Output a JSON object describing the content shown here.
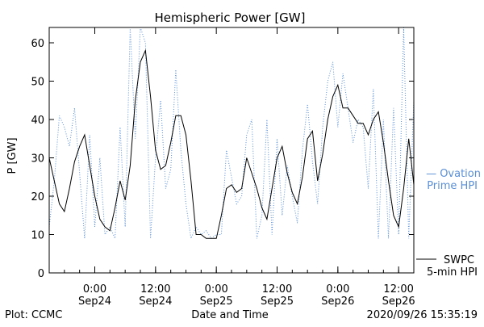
{
  "chart_data": {
    "type": "line",
    "title": "Hemispheric Power [GW]",
    "xlabel": "Date and Time",
    "ylabel": "P [GW]",
    "xlim": [
      "2020-09-23 15:00",
      "2020-09-26 15:00"
    ],
    "ylim": [
      0,
      64
    ],
    "yticks": [
      0,
      10,
      20,
      30,
      40,
      50,
      60
    ],
    "xticks": [
      {
        "t": "2020-09-24 00:00",
        "time": "0:00",
        "date": "Sep24"
      },
      {
        "t": "2020-09-24 12:00",
        "time": "12:00",
        "date": "Sep24"
      },
      {
        "t": "2020-09-25 00:00",
        "time": "0:00",
        "date": "Sep25"
      },
      {
        "t": "2020-09-25 12:00",
        "time": "12:00",
        "date": "Sep25"
      },
      {
        "t": "2020-09-26 00:00",
        "time": "0:00",
        "date": "Sep26"
      },
      {
        "t": "2020-09-26 12:00",
        "time": "12:00",
        "date": "Sep26"
      }
    ],
    "series": [
      {
        "name": "SWPC 5-min HPI",
        "legend": [
          "SWPC",
          "5-min HPI"
        ],
        "color": "#000000",
        "style": "solid",
        "x": [
          "2020-09-23 15:00",
          "2020-09-23 16:00",
          "2020-09-23 17:00",
          "2020-09-23 18:00",
          "2020-09-23 19:00",
          "2020-09-23 20:00",
          "2020-09-23 21:00",
          "2020-09-23 22:00",
          "2020-09-23 23:00",
          "2020-09-24 00:00",
          "2020-09-24 01:00",
          "2020-09-24 02:00",
          "2020-09-24 03:00",
          "2020-09-24 04:00",
          "2020-09-24 05:00",
          "2020-09-24 06:00",
          "2020-09-24 07:00",
          "2020-09-24 08:00",
          "2020-09-24 09:00",
          "2020-09-24 10:00",
          "2020-09-24 11:00",
          "2020-09-24 12:00",
          "2020-09-24 13:00",
          "2020-09-24 14:00",
          "2020-09-24 15:00",
          "2020-09-24 16:00",
          "2020-09-24 17:00",
          "2020-09-24 18:00",
          "2020-09-24 19:00",
          "2020-09-24 20:00",
          "2020-09-24 21:00",
          "2020-09-24 22:00",
          "2020-09-24 23:00",
          "2020-09-25 00:00",
          "2020-09-25 01:00",
          "2020-09-25 02:00",
          "2020-09-25 03:00",
          "2020-09-25 04:00",
          "2020-09-25 05:00",
          "2020-09-25 06:00",
          "2020-09-25 07:00",
          "2020-09-25 08:00",
          "2020-09-25 09:00",
          "2020-09-25 10:00",
          "2020-09-25 11:00",
          "2020-09-25 12:00",
          "2020-09-25 13:00",
          "2020-09-25 14:00",
          "2020-09-25 15:00",
          "2020-09-25 16:00",
          "2020-09-25 17:00",
          "2020-09-25 18:00",
          "2020-09-25 19:00",
          "2020-09-25 20:00",
          "2020-09-25 21:00",
          "2020-09-25 22:00",
          "2020-09-25 23:00",
          "2020-09-26 00:00",
          "2020-09-26 01:00",
          "2020-09-26 02:00",
          "2020-09-26 03:00",
          "2020-09-26 04:00",
          "2020-09-26 05:00",
          "2020-09-26 06:00",
          "2020-09-26 07:00",
          "2020-09-26 08:00",
          "2020-09-26 09:00",
          "2020-09-26 10:00",
          "2020-09-26 11:00",
          "2020-09-26 12:00",
          "2020-09-26 13:00",
          "2020-09-26 14:00",
          "2020-09-26 15:00"
        ],
        "y": [
          30,
          24,
          18,
          16,
          22,
          29,
          33,
          36,
          28,
          20,
          14,
          12,
          11,
          17,
          24,
          19,
          28,
          45,
          55,
          58,
          46,
          32,
          27,
          28,
          34,
          41,
          41,
          36,
          24,
          10,
          10,
          9,
          9,
          9,
          15,
          22,
          23,
          21,
          22,
          30,
          26,
          22,
          17,
          14,
          22,
          30,
          33,
          26,
          21,
          18,
          25,
          35,
          37,
          24,
          31,
          40,
          46,
          49,
          43,
          43,
          41,
          39,
          39,
          36,
          40,
          42,
          34,
          24,
          15,
          12,
          22,
          35,
          23
        ]
      },
      {
        "name": "Ovation Prime HPI",
        "legend": [
          "— Ovation",
          "Prime HPI"
        ],
        "color": "#5a8fd6",
        "style": "dotted",
        "x": [
          "2020-09-23 15:00",
          "2020-09-23 16:00",
          "2020-09-23 17:00",
          "2020-09-23 18:00",
          "2020-09-23 19:00",
          "2020-09-23 20:00",
          "2020-09-23 21:00",
          "2020-09-23 22:00",
          "2020-09-23 23:00",
          "2020-09-24 00:00",
          "2020-09-24 01:00",
          "2020-09-24 02:00",
          "2020-09-24 03:00",
          "2020-09-24 04:00",
          "2020-09-24 05:00",
          "2020-09-24 06:00",
          "2020-09-24 07:00",
          "2020-09-24 08:00",
          "2020-09-24 09:00",
          "2020-09-24 10:00",
          "2020-09-24 11:00",
          "2020-09-24 12:00",
          "2020-09-24 13:00",
          "2020-09-24 14:00",
          "2020-09-24 15:00",
          "2020-09-24 16:00",
          "2020-09-24 17:00",
          "2020-09-24 18:00",
          "2020-09-24 19:00",
          "2020-09-24 20:00",
          "2020-09-24 21:00",
          "2020-09-24 22:00",
          "2020-09-24 23:00",
          "2020-09-25 00:00",
          "2020-09-25 01:00",
          "2020-09-25 02:00",
          "2020-09-25 03:00",
          "2020-09-25 04:00",
          "2020-09-25 05:00",
          "2020-09-25 06:00",
          "2020-09-25 07:00",
          "2020-09-25 08:00",
          "2020-09-25 09:00",
          "2020-09-25 10:00",
          "2020-09-25 11:00",
          "2020-09-25 12:00",
          "2020-09-25 13:00",
          "2020-09-25 14:00",
          "2020-09-25 15:00",
          "2020-09-25 16:00",
          "2020-09-25 17:00",
          "2020-09-25 18:00",
          "2020-09-25 19:00",
          "2020-09-25 20:00",
          "2020-09-25 21:00",
          "2020-09-25 22:00",
          "2020-09-25 23:00",
          "2020-09-26 00:00",
          "2020-09-26 01:00",
          "2020-09-26 02:00",
          "2020-09-26 03:00",
          "2020-09-26 04:00",
          "2020-09-26 05:00",
          "2020-09-26 06:00",
          "2020-09-26 07:00",
          "2020-09-26 08:00",
          "2020-09-26 09:00",
          "2020-09-26 10:00",
          "2020-09-26 11:00",
          "2020-09-26 12:00",
          "2020-09-26 13:00",
          "2020-09-26 14:00",
          "2020-09-26 15:00"
        ],
        "y": [
          12,
          24,
          41,
          38,
          33,
          43,
          26,
          9,
          36,
          12,
          30,
          10,
          12,
          9,
          38,
          12,
          64,
          35,
          64,
          60,
          9,
          30,
          45,
          22,
          27,
          53,
          32,
          18,
          9,
          12,
          10,
          11,
          9,
          10,
          10,
          32,
          25,
          18,
          20,
          36,
          40,
          9,
          15,
          40,
          10,
          35,
          15,
          28,
          20,
          13,
          32,
          44,
          29,
          18,
          38,
          50,
          55,
          38,
          52,
          43,
          34,
          40,
          38,
          22,
          48,
          9,
          40,
          9,
          43,
          10,
          64,
          9,
          45
        ]
      }
    ]
  },
  "labels": {
    "plot_credit": "Plot: CCMC",
    "timestamp": "2020/09/26 15:35:19"
  }
}
